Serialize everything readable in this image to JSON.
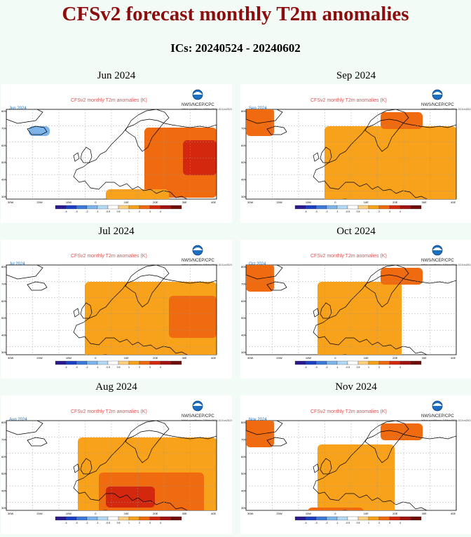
{
  "header": {
    "title": "CFSv2 forecast monthly T2m anomalies",
    "ics": "ICs: 20240524 - 20240602"
  },
  "plot": {
    "title": "CFSv2 monthly T2m anomalies (K)",
    "agency": "NWS/NCEP/CPC",
    "initial": "Initial conditions: 24May2024-02Jun2024",
    "lat_labels": [
      "80N",
      "70N",
      "60N",
      "50N",
      "40N",
      "30N"
    ],
    "lon_labels": [
      "30W",
      "20W",
      "10W",
      "0",
      "10E",
      "20E",
      "30E",
      "40E"
    ],
    "colorbar_labels": [
      "-4",
      "-3",
      "-2",
      "-1",
      "-0.5",
      "0.5",
      "1",
      "2",
      "3",
      "4"
    ],
    "colorbar_colors": [
      "#2b1a8e",
      "#1c3fc4",
      "#3b7ad8",
      "#7db4ec",
      "#b4d9f5",
      "#ffffff",
      "#ffd080",
      "#f7a21a",
      "#f06a10",
      "#d3280e",
      "#a0130e",
      "#6e0d0a"
    ]
  },
  "chart_data": [
    {
      "type": "heatmap",
      "title": "Jun 2024",
      "anomaly": "warm east (+1 to +3 K in Russia), neutral west, cool patch near Greenland"
    },
    {
      "type": "heatmap",
      "title": "Sep 2024",
      "anomaly": "warm +0.5 to +1 K across Europe, +2 to +3 K Iceland/north"
    },
    {
      "type": "heatmap",
      "title": "Jul 2024",
      "anomaly": "warm +0.5 to +1 K widespread, +1 to +2 K south and Russia"
    },
    {
      "type": "heatmap",
      "title": "Oct 2024",
      "anomaly": "warm +0.5 to +1 K west/north, neutral east, +2 K Iceland"
    },
    {
      "type": "heatmap",
      "title": "Aug 2024",
      "anomaly": "warm +0.5 to +2 K widespread, strongest in south and central Europe"
    },
    {
      "type": "heatmap",
      "title": "Nov 2024",
      "anomaly": "warm +0.5 to +1 K west/south, neutral east, +2 K Iceland"
    }
  ]
}
